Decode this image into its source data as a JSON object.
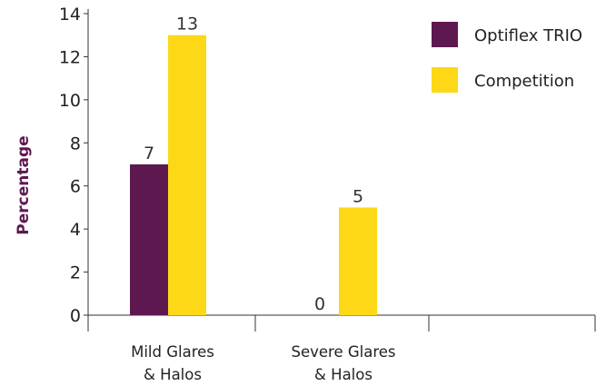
{
  "chart_data": {
    "type": "bar",
    "categories": [
      [
        "Mild Glares",
        "& Halos"
      ],
      [
        "Severe Glares",
        "& Halos"
      ],
      [
        "",
        ""
      ]
    ],
    "series": [
      {
        "name": "Optiflex TRIO",
        "color": "#5e1850",
        "values": [
          7,
          0,
          null
        ]
      },
      {
        "name": "Competition",
        "color": "#fdd816",
        "values": [
          13,
          5,
          null
        ]
      }
    ],
    "ylabel": "Percentage",
    "ylabel_color": "#5e1850",
    "ylim": [
      0,
      14
    ],
    "yticks": [
      0,
      2,
      4,
      6,
      8,
      10,
      12,
      14
    ],
    "grid": false,
    "legend_position": "top-right",
    "data_labels": true
  }
}
